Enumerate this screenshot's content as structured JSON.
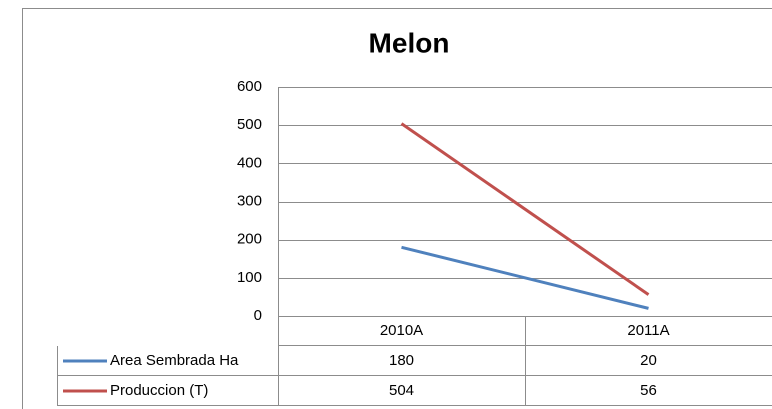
{
  "chart_data": {
    "type": "line",
    "title": "Melon",
    "categories": [
      "2010A",
      "2011A"
    ],
    "series": [
      {
        "name": "Area Sembrada Ha",
        "color": "#4f81bd",
        "values": [
          180,
          20
        ]
      },
      {
        "name": "Produccion (T)",
        "color": "#c0504d",
        "values": [
          504,
          56
        ]
      }
    ],
    "ylim": [
      0,
      600
    ],
    "yticks": [
      0,
      100,
      200,
      300,
      400,
      500,
      600
    ],
    "grid": true
  }
}
